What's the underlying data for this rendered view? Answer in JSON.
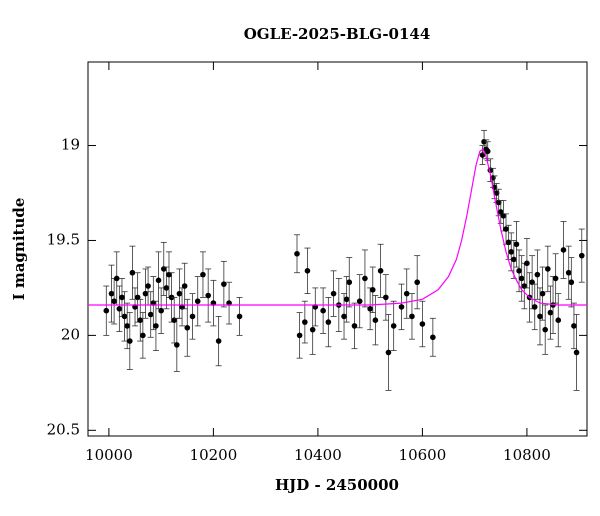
{
  "chart_data": {
    "type": "scatter",
    "title": "OGLE-2025-BLG-0144",
    "xlabel": "HJD - 2450000",
    "ylabel": "I magnitude",
    "xlim": [
      9960,
      10915
    ],
    "ylim": [
      18.56,
      20.53
    ],
    "y_inverted": true,
    "xticks": [
      10000,
      10200,
      10400,
      10600,
      10800
    ],
    "yticks": [
      19,
      19.5,
      20,
      20.5
    ],
    "series": [
      {
        "style": "points",
        "color": "#000000",
        "x": [
          9995,
          10005,
          10010,
          10015,
          10020,
          10025,
          10030,
          10035,
          10040,
          10045,
          10050,
          10055,
          10060,
          10065,
          10070,
          10075,
          10080,
          10085,
          10090,
          10095,
          10100,
          10105,
          10110,
          10115,
          10120,
          10125,
          10130,
          10135,
          10140,
          10145,
          10150,
          10160,
          10170,
          10180,
          10190,
          10200,
          10210,
          10220,
          10230,
          10250,
          10360,
          10365,
          10375,
          10380,
          10390,
          10395,
          10410,
          10420,
          10430,
          10440,
          10450,
          10455,
          10460,
          10470,
          10480,
          10490,
          10500,
          10505,
          10510,
          10520,
          10530,
          10535,
          10545,
          10560,
          10570,
          10580,
          10590,
          10600,
          10620,
          10715,
          10718,
          10722,
          10725,
          10730,
          10735,
          10738,
          10742,
          10746,
          10750,
          10755,
          10760,
          10765,
          10770,
          10775,
          10780,
          10785,
          10790,
          10795,
          10800,
          10805,
          10810,
          10815,
          10820,
          10825,
          10830,
          10835,
          10840,
          10845,
          10850,
          10855,
          10860,
          10870,
          10880,
          10885,
          10890,
          10895,
          10905
        ],
        "values": [
          19.87,
          19.78,
          19.82,
          19.7,
          19.86,
          19.8,
          19.9,
          19.95,
          20.03,
          19.67,
          19.85,
          19.8,
          19.92,
          20.0,
          19.78,
          19.74,
          19.89,
          19.83,
          19.95,
          19.71,
          19.87,
          19.65,
          19.75,
          19.68,
          19.8,
          19.92,
          20.05,
          19.78,
          19.85,
          19.74,
          19.96,
          19.9,
          19.82,
          19.68,
          19.79,
          19.83,
          20.03,
          19.73,
          19.83,
          19.9,
          19.57,
          20.0,
          19.93,
          19.66,
          19.97,
          19.85,
          19.87,
          19.93,
          19.78,
          19.84,
          19.9,
          19.81,
          19.72,
          19.95,
          19.82,
          19.7,
          19.86,
          19.76,
          19.92,
          19.66,
          19.8,
          20.09,
          19.95,
          19.85,
          19.78,
          19.9,
          19.72,
          19.94,
          20.01,
          19.05,
          18.98,
          19.02,
          19.03,
          19.13,
          19.17,
          19.22,
          19.25,
          19.3,
          19.35,
          19.37,
          19.44,
          19.51,
          19.56,
          19.6,
          19.52,
          19.66,
          19.7,
          19.74,
          19.62,
          19.8,
          19.72,
          19.85,
          19.68,
          19.9,
          19.78,
          19.97,
          19.65,
          19.88,
          19.84,
          19.7,
          19.92,
          19.55,
          19.67,
          19.72,
          19.95,
          20.09,
          19.58
        ],
        "errors": [
          0.13,
          0.15,
          0.12,
          0.14,
          0.12,
          0.1,
          0.13,
          0.12,
          0.15,
          0.14,
          0.1,
          0.13,
          0.11,
          0.12,
          0.13,
          0.1,
          0.12,
          0.14,
          0.13,
          0.15,
          0.12,
          0.14,
          0.11,
          0.12,
          0.13,
          0.12,
          0.14,
          0.13,
          0.1,
          0.12,
          0.15,
          0.12,
          0.13,
          0.12,
          0.14,
          0.12,
          0.13,
          0.12,
          0.11,
          0.1,
          0.1,
          0.12,
          0.11,
          0.12,
          0.13,
          0.1,
          0.12,
          0.13,
          0.12,
          0.14,
          0.12,
          0.12,
          0.13,
          0.12,
          0.14,
          0.15,
          0.11,
          0.12,
          0.13,
          0.14,
          0.12,
          0.2,
          0.13,
          0.12,
          0.13,
          0.12,
          0.14,
          0.12,
          0.1,
          0.05,
          0.06,
          0.05,
          0.05,
          0.06,
          0.05,
          0.06,
          0.05,
          0.07,
          0.06,
          0.08,
          0.08,
          0.09,
          0.1,
          0.1,
          0.12,
          0.11,
          0.12,
          0.12,
          0.13,
          0.13,
          0.14,
          0.12,
          0.13,
          0.15,
          0.14,
          0.13,
          0.12,
          0.14,
          0.15,
          0.13,
          0.14,
          0.15,
          0.14,
          0.13,
          0.12,
          0.2,
          0.14
        ]
      },
      {
        "style": "line",
        "color": "#ff00ff",
        "x": [
          9960,
          10500,
          10560,
          10600,
          10630,
          10650,
          10665,
          10675,
          10685,
          10695,
          10703,
          10710,
          10716,
          10722,
          10730,
          10740,
          10750,
          10760,
          10770,
          10780,
          10790,
          10805,
          10825,
          10860,
          10915
        ],
        "values": [
          19.84,
          19.84,
          19.83,
          19.81,
          19.76,
          19.69,
          19.6,
          19.5,
          19.37,
          19.22,
          19.1,
          19.03,
          19.02,
          19.06,
          19.15,
          19.3,
          19.44,
          19.56,
          19.65,
          19.71,
          19.76,
          19.8,
          19.83,
          19.84,
          19.84
        ]
      }
    ]
  }
}
